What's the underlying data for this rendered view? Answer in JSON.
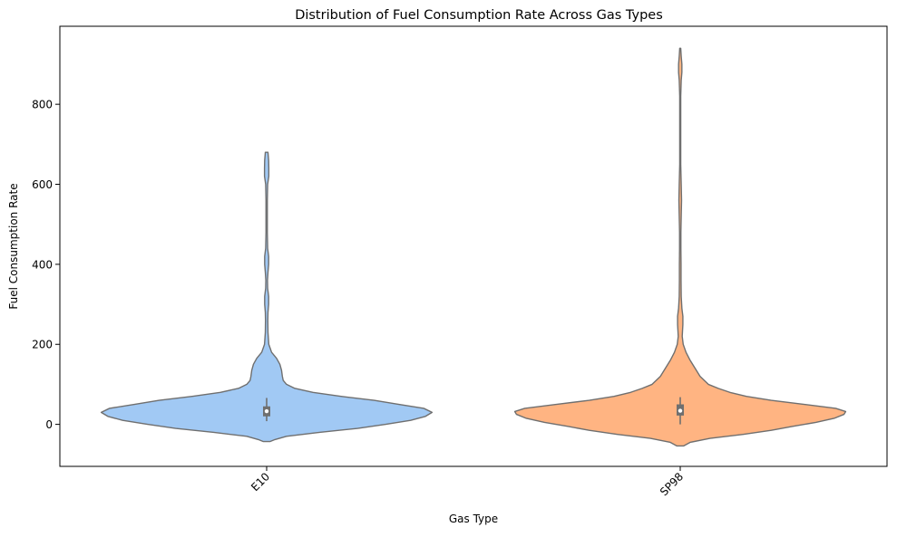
{
  "chart_data": {
    "type": "violin",
    "title": "Distribution of Fuel Consumption Rate Across Gas Types",
    "xlabel": "Gas Type",
    "ylabel": "Fuel Consumption Rate",
    "ylim": [
      -105,
      995
    ],
    "yticks": [
      0,
      200,
      400,
      600,
      800
    ],
    "categories": [
      "E10",
      "SP98"
    ],
    "grid": false,
    "colors": {
      "E10": "#a1c9f4",
      "SP98": "#ffb482",
      "outline": "#6f6f6f",
      "box": "#6f6f6f",
      "median": "#ffffff"
    },
    "violins": [
      {
        "name": "E10",
        "range": [
          -43,
          680
        ],
        "quartiles": {
          "q1": 20,
          "median": 33,
          "q3": 45
        },
        "whiskers": [
          8,
          66
        ],
        "density": [
          [
            -43,
            0.02
          ],
          [
            -38,
            0.05
          ],
          [
            -30,
            0.12
          ],
          [
            -20,
            0.32
          ],
          [
            -10,
            0.55
          ],
          [
            0,
            0.72
          ],
          [
            10,
            0.87
          ],
          [
            20,
            0.96
          ],
          [
            30,
            1.0
          ],
          [
            40,
            0.95
          ],
          [
            50,
            0.8
          ],
          [
            60,
            0.65
          ],
          [
            70,
            0.45
          ],
          [
            80,
            0.28
          ],
          [
            90,
            0.17
          ],
          [
            100,
            0.12
          ],
          [
            110,
            0.1
          ],
          [
            120,
            0.095
          ],
          [
            135,
            0.09
          ],
          [
            150,
            0.08
          ],
          [
            165,
            0.06
          ],
          [
            180,
            0.03
          ],
          [
            200,
            0.013
          ],
          [
            230,
            0.008
          ],
          [
            260,
            0.007
          ],
          [
            280,
            0.008
          ],
          [
            300,
            0.012
          ],
          [
            320,
            0.012
          ],
          [
            340,
            0.006
          ],
          [
            360,
            0.005
          ],
          [
            380,
            0.008
          ],
          [
            400,
            0.012
          ],
          [
            420,
            0.012
          ],
          [
            440,
            0.006
          ],
          [
            480,
            0.004
          ],
          [
            520,
            0.004
          ],
          [
            560,
            0.004
          ],
          [
            600,
            0.006
          ],
          [
            620,
            0.013
          ],
          [
            640,
            0.013
          ],
          [
            660,
            0.012
          ],
          [
            680,
            0.008
          ]
        ]
      },
      {
        "name": "SP98",
        "range": [
          -54,
          940
        ],
        "quartiles": {
          "q1": 22,
          "median": 34,
          "q3": 50
        },
        "whiskers": [
          0,
          68
        ],
        "density": [
          [
            -54,
            0.02
          ],
          [
            -45,
            0.06
          ],
          [
            -35,
            0.18
          ],
          [
            -25,
            0.38
          ],
          [
            -15,
            0.55
          ],
          [
            -5,
            0.68
          ],
          [
            5,
            0.82
          ],
          [
            15,
            0.93
          ],
          [
            25,
            0.99
          ],
          [
            32,
            1.0
          ],
          [
            40,
            0.94
          ],
          [
            50,
            0.75
          ],
          [
            60,
            0.55
          ],
          [
            70,
            0.4
          ],
          [
            80,
            0.3
          ],
          [
            90,
            0.23
          ],
          [
            100,
            0.17
          ],
          [
            120,
            0.12
          ],
          [
            140,
            0.09
          ],
          [
            160,
            0.06
          ],
          [
            180,
            0.035
          ],
          [
            200,
            0.018
          ],
          [
            220,
            0.012
          ],
          [
            250,
            0.016
          ],
          [
            270,
            0.016
          ],
          [
            290,
            0.01
          ],
          [
            320,
            0.006
          ],
          [
            360,
            0.005
          ],
          [
            400,
            0.005
          ],
          [
            440,
            0.004
          ],
          [
            480,
            0.004
          ],
          [
            520,
            0.006
          ],
          [
            560,
            0.008
          ],
          [
            600,
            0.006
          ],
          [
            650,
            0.003
          ],
          [
            700,
            0.003
          ],
          [
            760,
            0.003
          ],
          [
            820,
            0.003
          ],
          [
            860,
            0.006
          ],
          [
            880,
            0.01
          ],
          [
            900,
            0.01
          ],
          [
            920,
            0.006
          ],
          [
            940,
            0.003
          ]
        ]
      }
    ]
  }
}
